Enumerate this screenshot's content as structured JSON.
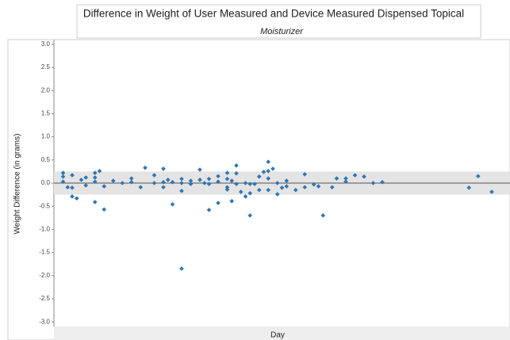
{
  "chart_data": {
    "type": "scatter",
    "title": "Difference in Weight of User Measured and Device Measured Dispensed Topical",
    "subtitle": "Moisturizer",
    "x_label": "Day",
    "y_label": "Weight Difference (in grams)",
    "color": "#2e75b6",
    "xlim": [
      0,
      100
    ],
    "ylim": [
      -3.1,
      3.1
    ],
    "yticks": [
      {
        "value": 3,
        "label": "3.0"
      },
      2.5,
      {
        "value": 2,
        "label": "2.0"
      },
      1.5,
      {
        "value": 1,
        "label": "1.0"
      },
      0.5,
      {
        "value": 0,
        "label": "0.0"
      },
      -0.5,
      {
        "value": -1,
        "label": "-1.0"
      },
      -1.5,
      {
        "value": -2,
        "label": "-2.0"
      },
      -2.5,
      {
        "value": -3,
        "label": "-3.0"
      }
    ],
    "reference_band": [
      -0.25,
      0.25
    ],
    "reference_line": 0,
    "x": [
      2,
      2,
      2,
      3,
      4,
      4,
      4,
      5,
      6,
      7,
      7,
      9,
      9,
      9,
      9,
      10,
      11,
      11,
      13,
      15,
      17,
      17,
      20,
      19,
      22,
      22,
      24,
      24,
      24,
      25,
      26,
      26,
      28,
      28,
      28,
      28,
      30,
      30,
      32,
      32,
      33,
      34,
      34,
      34,
      36,
      36,
      36,
      38,
      38,
      38,
      38,
      39,
      39,
      40,
      40,
      40,
      41,
      42,
      42,
      43,
      43,
      43,
      44,
      45,
      45,
      46,
      47,
      47,
      47,
      47,
      48,
      49,
      49,
      50,
      51,
      51,
      53,
      55,
      55,
      57,
      58,
      59,
      61,
      62,
      64,
      64,
      66,
      68,
      70,
      72,
      91,
      93,
      96
    ],
    "values": [
      0.22,
      0.14,
      0.03,
      -0.09,
      0.17,
      -0.1,
      -0.29,
      -0.33,
      0.07,
      0.12,
      -0.05,
      0.12,
      0.22,
      -0.41,
      0.03,
      0.26,
      -0.07,
      -0.57,
      0.05,
      0,
      0.1,
      0.02,
      0.33,
      -0.09,
      0.17,
      0,
      0.31,
      -0.09,
      0.02,
      0.07,
      0.02,
      -0.46,
      0,
      -0.17,
      0.09,
      -1.85,
      0.05,
      -0.02,
      0.29,
      0.07,
      0,
      0.09,
      -0.58,
      -0.02,
      0.15,
      0.03,
      -0.43,
      0.22,
      0.09,
      -0.09,
      -0.14,
      0.05,
      -0.39,
      -0.02,
      0.38,
      0.21,
      -0.19,
      0,
      -0.29,
      -0.02,
      -0.22,
      -0.7,
      -0.02,
      -0.15,
      0.14,
      0.24,
      0.1,
      -0.15,
      0.26,
      0.46,
      0.31,
      0,
      -0.24,
      -0.1,
      0.05,
      -0.07,
      -0.15,
      0.19,
      -0.09,
      -0.03,
      -0.07,
      -0.7,
      -0.09,
      0.1,
      0.03,
      0.1,
      0.17,
      0.14,
      0,
      0.02,
      -0.1,
      0.15,
      -0.19
    ]
  }
}
